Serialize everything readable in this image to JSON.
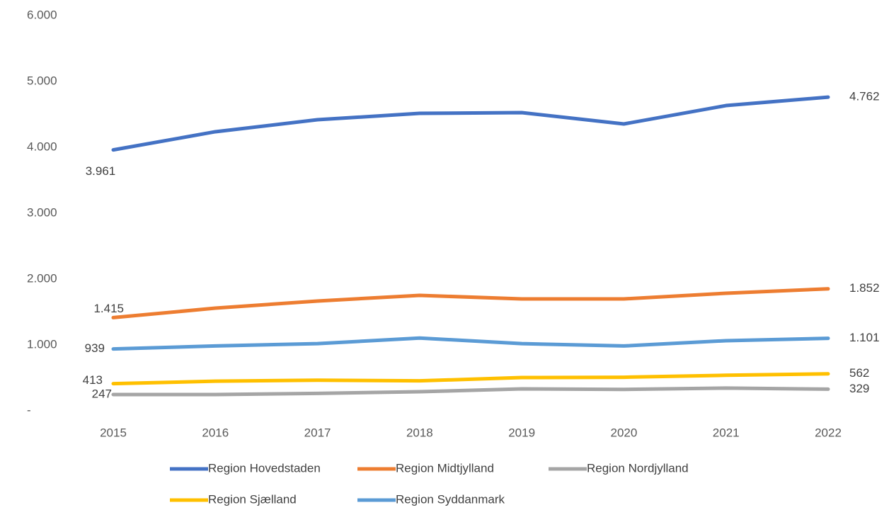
{
  "chart_data": {
    "type": "line",
    "categories": [
      "2015",
      "2016",
      "2017",
      "2018",
      "2019",
      "2020",
      "2021",
      "2022"
    ],
    "series": [
      {
        "name": "Region Hovedstaden",
        "color": "#4472c4",
        "values": [
          3961,
          4237,
          4419,
          4516,
          4527,
          4355,
          4634,
          4762
        ],
        "value_labels": [
          "3.961",
          null,
          null,
          null,
          null,
          null,
          null,
          "4.762"
        ]
      },
      {
        "name": "Region Midtjylland",
        "color": "#ed7d31",
        "values": [
          1415,
          1559,
          1667,
          1753,
          1699,
          1699,
          1785,
          1852
        ],
        "value_labels": [
          "1.415",
          null,
          null,
          null,
          null,
          null,
          null,
          "1.852"
        ]
      },
      {
        "name": "Region Nordjylland",
        "color": "#a5a5a5",
        "values": [
          247,
          247,
          265,
          290,
          333,
          325,
          345,
          329
        ],
        "value_labels": [
          "247",
          null,
          null,
          null,
          null,
          null,
          null,
          "329"
        ]
      },
      {
        "name": "Region Sjælland",
        "color": "#ffc000",
        "values": [
          413,
          450,
          465,
          455,
          505,
          510,
          540,
          562
        ],
        "value_labels": [
          "413",
          null,
          null,
          null,
          null,
          null,
          null,
          "562"
        ]
      },
      {
        "name": "Region Syddanmark",
        "color": "#5b9bd5",
        "values": [
          939,
          985,
          1020,
          1105,
          1020,
          985,
          1065,
          1101
        ],
        "value_labels": [
          "939",
          null,
          null,
          null,
          null,
          null,
          null,
          "1.101"
        ]
      }
    ],
    "ylim": [
      0,
      6000
    ],
    "yticks": [
      {
        "value": 0,
        "label": "-"
      },
      {
        "value": 1000,
        "label": "1.000"
      },
      {
        "value": 2000,
        "label": "2.000"
      },
      {
        "value": 3000,
        "label": "3.000"
      },
      {
        "value": 4000,
        "label": "4.000"
      },
      {
        "value": 5000,
        "label": "5.000"
      },
      {
        "value": 6000,
        "label": "6.000"
      }
    ],
    "grid": false,
    "legend": "bottom"
  }
}
